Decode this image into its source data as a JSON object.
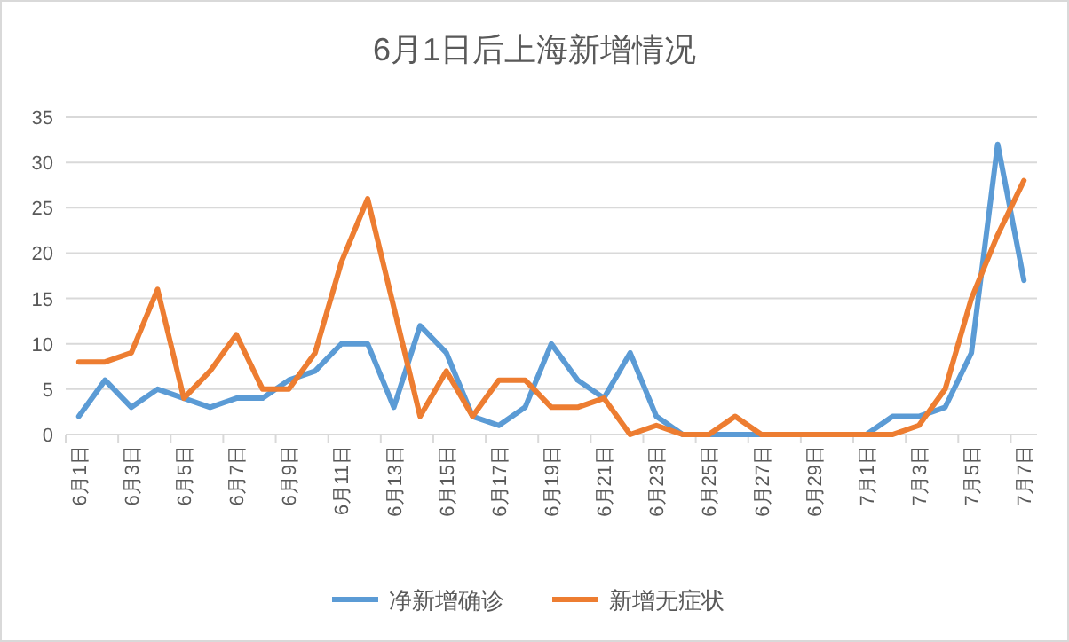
{
  "chart_data": {
    "type": "line",
    "title": "6月1日后上海新增情况",
    "categories": [
      "6月1日",
      null,
      "6月3日",
      null,
      "6月5日",
      null,
      "6月7日",
      null,
      "6月9日",
      null,
      "6月11日",
      null,
      "6月13日",
      null,
      "6月15日",
      null,
      "6月17日",
      null,
      "6月19日",
      null,
      "6月21日",
      null,
      "6月23日",
      null,
      "6月25日",
      null,
      "6月27日",
      null,
      "6月29日",
      null,
      "7月1日",
      null,
      "7月3日",
      null,
      "7月5日",
      null,
      "7月7日"
    ],
    "series": [
      {
        "name": "净新增确诊",
        "color": "#5b9bd5",
        "values": [
          2,
          6,
          3,
          5,
          4,
          3,
          4,
          4,
          6,
          7,
          10,
          10,
          3,
          12,
          9,
          2,
          1,
          3,
          10,
          6,
          4,
          9,
          2,
          0,
          0,
          0,
          0,
          0,
          0,
          0,
          0,
          2,
          2,
          3,
          9,
          32,
          17
        ]
      },
      {
        "name": "新增无症状",
        "color": "#ed7d31",
        "values": [
          8,
          8,
          9,
          16,
          4,
          7,
          11,
          5,
          5,
          9,
          19,
          26,
          14,
          2,
          7,
          2,
          6,
          6,
          3,
          3,
          4,
          0,
          1,
          0,
          0,
          2,
          0,
          0,
          0,
          0,
          0,
          0,
          1,
          5,
          15,
          22,
          28
        ]
      }
    ],
    "ylim": [
      0,
      35
    ],
    "yticks": [
      0,
      5,
      10,
      15,
      20,
      25,
      30,
      35
    ],
    "grid": "y",
    "legend": "bottom",
    "marker": "none",
    "line_style": "solid"
  }
}
